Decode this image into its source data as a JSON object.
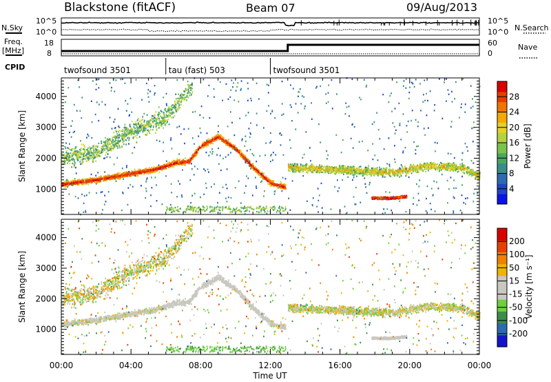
{
  "header": {
    "station": "Blackstone (fitACF)",
    "beam": "Beam 07",
    "date": "09/Aug/2013"
  },
  "noise_panel": {
    "left_label": "N.Sky",
    "right_label": "N.Search",
    "left_ticks": [
      "10^5",
      "10^0"
    ],
    "right_ticks": [
      "10^5",
      "10^0"
    ]
  },
  "freq_panel": {
    "left_label_1": "Freq.",
    "left_label_2": "[MHz]",
    "right_label": "Nave",
    "left_ticks": [
      "18",
      "8"
    ],
    "right_ticks": [
      "60",
      "0"
    ]
  },
  "cpid": {
    "label": "CPID",
    "segments": [
      {
        "name": "twofsound 3501",
        "start_h": 0,
        "end_h": 6
      },
      {
        "name": "tau (fast) 503",
        "start_h": 6,
        "end_h": 12
      },
      {
        "name": "twofsound 3501",
        "start_h": 12,
        "end_h": 24
      }
    ]
  },
  "time_axis": {
    "label": "Time UT",
    "ticks": [
      "00:00",
      "04:00",
      "08:00",
      "12:00",
      "16:00",
      "20:00",
      "00:00"
    ]
  },
  "chart_data": [
    {
      "type": "heatmap",
      "name": "power",
      "ylabel": "Slant Range [km]",
      "xlabel": "",
      "xlim_hours": [
        0,
        24
      ],
      "ylim": [
        180,
        4600
      ],
      "yticks": [
        1000,
        2000,
        3000,
        4000
      ],
      "colorbar": {
        "label": "Power [dB]",
        "ticks": [
          "28",
          "24",
          "20",
          "16",
          "12",
          "8",
          "4"
        ],
        "colors": [
          "#0a14e6",
          "#2244cc",
          "#2e6ab0",
          "#3a8c8a",
          "#49a860",
          "#7cc24a",
          "#b4d23c",
          "#e6d028",
          "#f4a800",
          "#f07400",
          "#e63c00",
          "#d80000"
        ]
      },
      "scatter_bands": [
        {
          "desc": "main echo band",
          "points": [
            [
              0,
              1150
            ],
            [
              2,
              1300
            ],
            [
              4,
              1500
            ],
            [
              5.5,
              1650
            ],
            [
              6.5,
              1850
            ],
            [
              7.3,
              1900
            ],
            [
              8,
              2400
            ],
            [
              9,
              2700
            ],
            [
              10,
              2300
            ],
            [
              11,
              1700
            ],
            [
              12,
              1200
            ],
            [
              12.9,
              1050
            ]
          ]
        },
        {
          "desc": "upper diffuse band",
          "points": [
            [
              0,
              2000
            ],
            [
              2,
              2200
            ],
            [
              4,
              2900
            ],
            [
              6,
              3300
            ],
            [
              7.3,
              4200
            ]
          ]
        },
        {
          "desc": "afternoon band",
          "points": [
            [
              13,
              1700
            ],
            [
              15,
              1650
            ],
            [
              17,
              1600
            ],
            [
              19,
              1550
            ],
            [
              21,
              1750
            ],
            [
              23,
              1700
            ],
            [
              24,
              1400
            ]
          ]
        },
        {
          "desc": "evening layer",
          "points": [
            [
              17.8,
              720
            ],
            [
              18.8,
              700
            ],
            [
              19.8,
              760
            ]
          ]
        }
      ]
    },
    {
      "type": "heatmap",
      "name": "velocity",
      "ylabel": "Slant Range [km]",
      "xlabel": "Time UT",
      "xlim_hours": [
        0,
        24
      ],
      "ylim": [
        180,
        4600
      ],
      "yticks": [
        1000,
        2000,
        3000,
        4000
      ],
      "colorbar": {
        "label": "Velocity [m s⁻¹]",
        "ticks": [
          "200",
          "100",
          "50",
          "15",
          "-15",
          "-50",
          "-100",
          "-200"
        ],
        "colors": [
          "#1414cc",
          "#2e6ab0",
          "#3c8c4a",
          "#6cd040",
          "#c8c8c0",
          "#c8c8c0",
          "#f0b400",
          "#f08000",
          "#e64000",
          "#d80000"
        ]
      }
    }
  ]
}
